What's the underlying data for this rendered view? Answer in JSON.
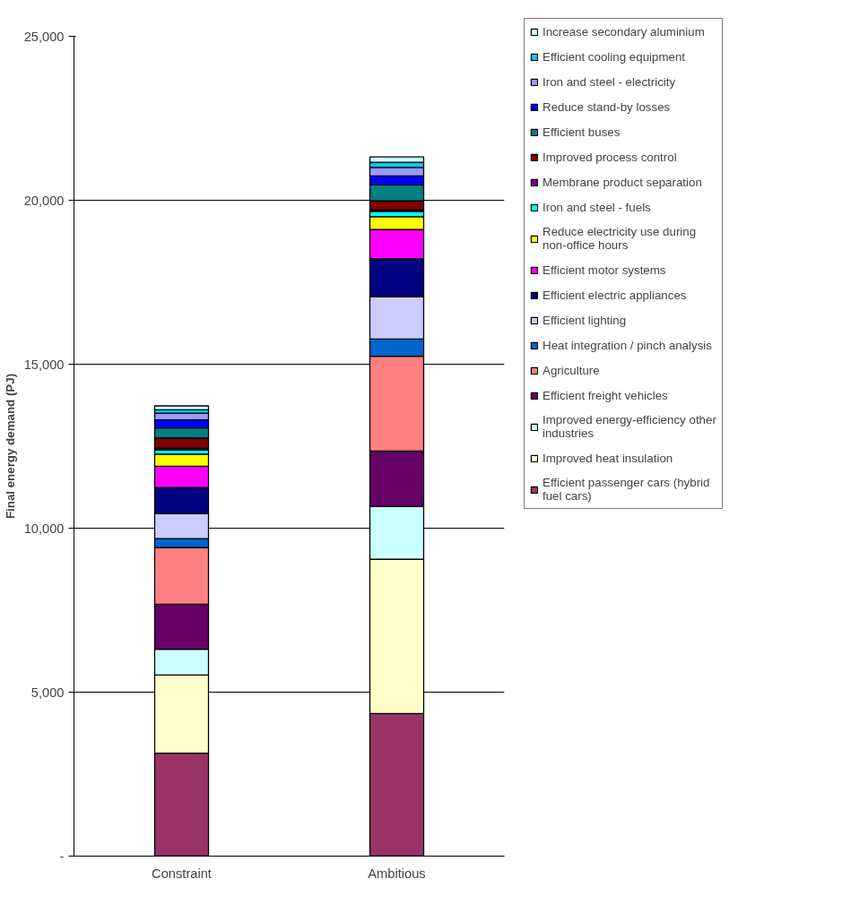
{
  "chart_data": {
    "type": "bar",
    "stacked": true,
    "ylabel": "Final energy demand (PJ)",
    "categories": [
      "Constraint",
      "Ambitious"
    ],
    "ylim": [
      0,
      25000
    ],
    "yticks": [
      {
        "value": 0,
        "label": "-"
      },
      {
        "value": 5000,
        "label": "5,000"
      },
      {
        "value": 10000,
        "label": "10,000"
      },
      {
        "value": 15000,
        "label": "15,000"
      },
      {
        "value": 20000,
        "label": "20,000"
      },
      {
        "value": 25000,
        "label": "25,000"
      }
    ],
    "grid": "y",
    "legend": "right",
    "series": [
      {
        "name": "Efficient passenger cars (hybrid fuel cars)",
        "color": "#993366",
        "values": [
          3140,
          4350
        ]
      },
      {
        "name": "Improved heat insulation",
        "color": "#ffffcc",
        "values": [
          2380,
          4700
        ]
      },
      {
        "name": "Improved energy-efficiency other industries",
        "color": "#ccffff",
        "values": [
          790,
          1610
        ]
      },
      {
        "name": "Efficient freight vehicles",
        "color": "#660066",
        "values": [
          1370,
          1690
        ]
      },
      {
        "name": "Agriculture",
        "color": "#ff8080",
        "values": [
          1730,
          2890
        ]
      },
      {
        "name": "Heat integration / pinch analysis",
        "color": "#0066cc",
        "values": [
          270,
          530
        ]
      },
      {
        "name": "Efficient lighting",
        "color": "#ccccff",
        "values": [
          760,
          1290
        ]
      },
      {
        "name": "Efficient electric appliances",
        "color": "#000080",
        "values": [
          800,
          1160
        ]
      },
      {
        "name": "Efficient motor systems",
        "color": "#ff00ff",
        "values": [
          650,
          890
        ]
      },
      {
        "name": "Reduce electricity use during non-office hours",
        "color": "#ffff00",
        "values": [
          370,
          390
        ]
      },
      {
        "name": "Iron and steel - fuels",
        "color": "#00ffff",
        "values": [
          130,
          160
        ]
      },
      {
        "name": "Membrane product separation",
        "color": "#800080",
        "values": [
          50,
          40
        ]
      },
      {
        "name": "Improved process control",
        "color": "#800000",
        "values": [
          310,
          280
        ]
      },
      {
        "name": "Efficient buses",
        "color": "#008080",
        "values": [
          310,
          490
        ]
      },
      {
        "name": "Reduce stand-by losses",
        "color": "#0000ff",
        "values": [
          240,
          270
        ]
      },
      {
        "name": "Iron and steel - electricity",
        "color": "#9999ff",
        "values": [
          210,
          260
        ]
      },
      {
        "name": "Efficient cooling equipment",
        "color": "#00ccff",
        "values": [
          100,
          160
        ]
      },
      {
        "name": "Increase secondary aluminium",
        "color": "#ccffff",
        "values": [
          120,
          160
        ]
      }
    ]
  }
}
